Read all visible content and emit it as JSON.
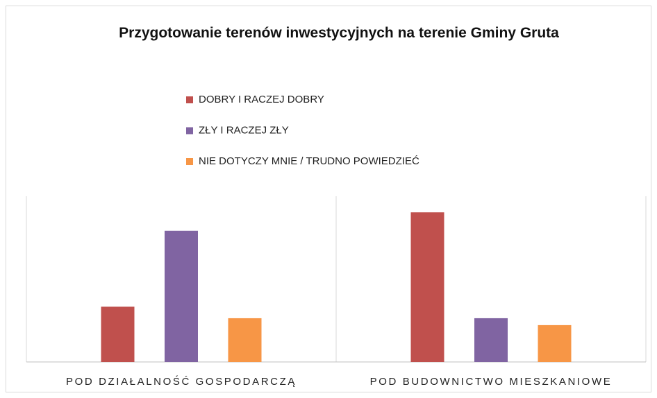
{
  "chart_data": {
    "type": "bar",
    "title": "Przygotowanie terenów inwestycyjnych na terenie Gminy Gruta",
    "categories": [
      "POD DZIAŁALNOŚĆ GOSPODARCZĄ",
      "POD BUDOWNICTWO MIESZKANIOWE"
    ],
    "series": [
      {
        "name": "DOBRY I RACZEJ DOBRY",
        "color": "#c0504d",
        "values": [
          24,
          65
        ]
      },
      {
        "name": "ZŁY I RACZEJ ZŁY",
        "color": "#8064a2",
        "values": [
          57,
          19
        ]
      },
      {
        "name": "NIE DOTYCZY MNIE / TRUDNO POWIEDZIEĆ",
        "color": "#f79646",
        "values": [
          19,
          16
        ]
      }
    ],
    "ylim": [
      0,
      72
    ],
    "legend": "top"
  }
}
